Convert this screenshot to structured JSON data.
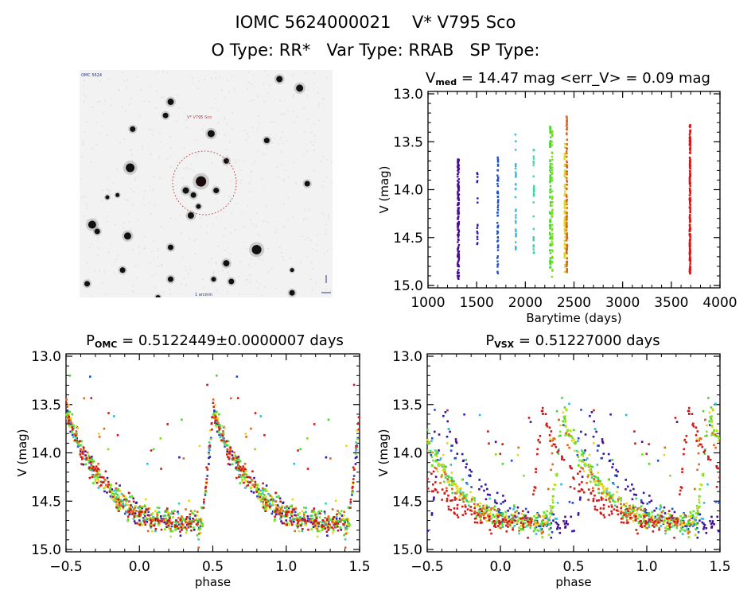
{
  "header": {
    "line1": "IOMC 5624000021    V* V795 Sco",
    "line2": "O Type: RR*   Var Type: RRAB   SP Type:"
  },
  "finder_chart": {
    "target_label": "V* V795 Sco",
    "corner_label_tl": "OMC 5624",
    "bottom_label": "1 arcmin",
    "marker_color": "#c83c3c",
    "stars": [
      [
        0.36,
        0.14,
        6
      ],
      [
        0.34,
        0.2,
        5
      ],
      [
        0.21,
        0.26,
        5
      ],
      [
        0.2,
        0.43,
        9
      ],
      [
        0.52,
        0.28,
        7
      ],
      [
        0.79,
        0.04,
        6
      ],
      [
        0.87,
        0.08,
        7
      ],
      [
        0.9,
        0.5,
        5
      ],
      [
        0.74,
        0.31,
        5
      ],
      [
        0.58,
        0.4,
        5
      ],
      [
        0.48,
        0.49,
        11
      ],
      [
        0.42,
        0.53,
        6
      ],
      [
        0.45,
        0.55,
        5
      ],
      [
        0.54,
        0.53,
        5
      ],
      [
        0.47,
        0.6,
        4
      ],
      [
        0.44,
        0.64,
        6
      ],
      [
        0.15,
        0.55,
        3
      ],
      [
        0.05,
        0.68,
        8
      ],
      [
        0.07,
        0.71,
        5
      ],
      [
        0.19,
        0.73,
        7
      ],
      [
        0.36,
        0.78,
        5
      ],
      [
        0.58,
        0.85,
        6
      ],
      [
        0.7,
        0.79,
        10
      ],
      [
        0.17,
        0.88,
        5
      ],
      [
        0.03,
        0.94,
        5
      ],
      [
        0.36,
        0.92,
        5
      ],
      [
        0.53,
        0.92,
        4
      ],
      [
        0.6,
        0.93,
        5
      ],
      [
        0.84,
        0.98,
        5
      ],
      [
        0.84,
        0.88,
        3
      ],
      [
        0.31,
        1.0,
        4
      ],
      [
        0.11,
        0.56,
        3
      ]
    ]
  },
  "chart_data": [
    {
      "id": "time-series",
      "type": "scatter",
      "title": "V_med = 14.47 mag <err_V> = 0.09 mag",
      "title_main": "V",
      "title_sub": "med",
      "title_rest": " = 14.47 mag <err_V> = 0.09 mag",
      "xlabel": "Barytime (days)",
      "ylabel": "V (mag)",
      "xlim": [
        1000,
        4000
      ],
      "ylim": [
        15.0,
        13.0
      ],
      "y_inverted": true,
      "xticks": [
        1000,
        1500,
        2000,
        2500,
        3000,
        3500,
        4000
      ],
      "xtick_labels": [
        "1000",
        "1500",
        "2000",
        "2500",
        "3000",
        "3500",
        "4000"
      ],
      "yticks": [
        13.0,
        13.5,
        14.0,
        14.5,
        15.0
      ],
      "ytick_labels": [
        "13.0",
        "13.5",
        "14.0",
        "14.5",
        "15.0"
      ],
      "groups": [
        {
          "x": 1310,
          "width": 15,
          "ymin": 13.68,
          "ymax": 14.97,
          "n": 140,
          "color": "#4b0c8c"
        },
        {
          "x": 1505,
          "width": 6,
          "ymin": 13.8,
          "ymax": 14.57,
          "n": 16,
          "color": "#2a1aa8"
        },
        {
          "x": 1715,
          "width": 10,
          "ymin": 13.66,
          "ymax": 14.92,
          "n": 55,
          "color": "#1f4fc8"
        },
        {
          "x": 1900,
          "width": 6,
          "ymin": 13.4,
          "ymax": 14.73,
          "n": 32,
          "color": "#33b8d8"
        },
        {
          "x": 2085,
          "width": 6,
          "ymin": 13.58,
          "ymax": 14.82,
          "n": 28,
          "color": "#2ed89a"
        },
        {
          "x": 2255,
          "width": 8,
          "ymin": 13.34,
          "ymax": 14.82,
          "n": 90,
          "color": "#44d82a"
        },
        {
          "x": 2275,
          "width": 8,
          "ymin": 13.36,
          "ymax": 14.93,
          "n": 60,
          "color": "#7ce01c"
        },
        {
          "x": 2405,
          "width": 8,
          "ymin": 13.5,
          "ymax": 14.86,
          "n": 90,
          "color": "#e8d81a"
        },
        {
          "x": 2425,
          "width": 8,
          "ymin": 13.23,
          "ymax": 14.86,
          "n": 110,
          "color": "#e0641a"
        },
        {
          "x": 3690,
          "width": 8,
          "ymin": 13.32,
          "ymax": 14.88,
          "n": 200,
          "color": "#d01818"
        }
      ]
    },
    {
      "id": "phase-omc",
      "type": "scatter",
      "title": "P_OMC = 0.5122449±0.0000007 days",
      "title_main": "P",
      "title_sub": "OMC",
      "title_rest": " = 0.5122449±0.0000007 days",
      "period_days": 0.5122449,
      "period_err_days": 7e-07,
      "xlabel": "phase",
      "ylabel": "V (mag)",
      "xlim": [
        -0.5,
        1.5
      ],
      "ylim": [
        15.0,
        13.0
      ],
      "y_inverted": true,
      "xticks": [
        -0.5,
        0.0,
        0.5,
        1.0,
        1.5
      ],
      "xtick_labels": [
        "-0.5",
        "0.0",
        "0.5",
        "1.0",
        "1.5"
      ],
      "yticks": [
        13.0,
        13.5,
        14.0,
        14.5,
        15.0
      ],
      "ytick_labels": [
        "13.0",
        "13.5",
        "14.0",
        "14.5",
        "15.0"
      ],
      "light_curve": {
        "max_mag": 13.55,
        "min_mag": 14.72,
        "rise_phase_start": 0.4,
        "max_phase": 0.5
      },
      "colors": [
        "#4b0c8c",
        "#2a1aa8",
        "#1f4fc8",
        "#33b8d8",
        "#2ed89a",
        "#44d82a",
        "#7ce01c",
        "#e8d81a",
        "#e0641a",
        "#d01818"
      ],
      "phase_shift_by_color": [
        0,
        0,
        0,
        0,
        0,
        0,
        0,
        0,
        0,
        0
      ]
    },
    {
      "id": "phase-vsx",
      "type": "scatter",
      "title": "P_VSX = 0.51227000 days",
      "title_main": "P",
      "title_sub": "VSX",
      "title_rest": " = 0.51227000 days",
      "period_days": 0.51227,
      "xlabel": "phase",
      "ylabel": "V (mag)",
      "xlim": [
        -0.5,
        1.5
      ],
      "ylim": [
        15.0,
        13.0
      ],
      "y_inverted": true,
      "xticks": [
        -0.5,
        0.0,
        0.5,
        1.0,
        1.5
      ],
      "xtick_labels": [
        "-0.5",
        "0.0",
        "0.5",
        "1.0",
        "1.5"
      ],
      "yticks": [
        13.0,
        13.5,
        14.0,
        14.5,
        15.0
      ],
      "ytick_labels": [
        "13.0",
        "13.5",
        "14.0",
        "14.5",
        "15.0"
      ],
      "light_curve": {
        "max_mag": 13.55,
        "min_mag": 14.72,
        "rise_phase_start": 0.4,
        "max_phase": 0.5
      },
      "colors": [
        "#4b0c8c",
        "#2a1aa8",
        "#1f4fc8",
        "#33b8d8",
        "#2ed89a",
        "#44d82a",
        "#7ce01c",
        "#e8d81a",
        "#e0641a",
        "#d01818"
      ],
      "phase_shift_by_color": [
        0.1,
        0.1,
        0.05,
        -0.05,
        -0.08,
        -0.08,
        -0.08,
        -0.08,
        -0.12,
        -0.22
      ]
    }
  ]
}
